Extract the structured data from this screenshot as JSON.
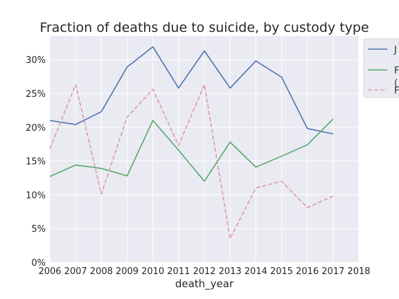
{
  "chart_data": {
    "type": "line",
    "title": "Fraction of deaths due to suicide, by custody type",
    "xlabel": "death_year",
    "ylabel": "",
    "xlim": [
      2006,
      2018
    ],
    "ylim": [
      0,
      0.335
    ],
    "x_ticks": [
      "2006",
      "2007",
      "2008",
      "2009",
      "2010",
      "2011",
      "2012",
      "2013",
      "2014",
      "2015",
      "2016",
      "2017",
      "2018"
    ],
    "y_ticks": [
      {
        "value": 0,
        "label": "0%"
      },
      {
        "value": 0.05,
        "label": "5%"
      },
      {
        "value": 0.1,
        "label": "10%"
      },
      {
        "value": 0.15,
        "label": "15%"
      },
      {
        "value": 0.2,
        "label": "20%"
      },
      {
        "value": 0.25,
        "label": "25%"
      },
      {
        "value": 0.3,
        "label": "30%"
      }
    ],
    "grid": true,
    "legend_position": "outside-right",
    "x": [
      2006,
      2007,
      2008,
      2009,
      2010,
      2011,
      2012,
      2013,
      2014,
      2015,
      2016,
      2017
    ],
    "series": [
      {
        "name": "J",
        "color": "#4c72b0",
        "dash": "solid",
        "values": [
          0.21,
          0.204,
          0.223,
          0.289,
          0.319,
          0.258,
          0.313,
          0.258,
          0.298,
          0.274,
          0.198,
          0.19
        ]
      },
      {
        "name": "F",
        "name_line2": "(",
        "color": "#55a868",
        "dash": "solid",
        "values": [
          0.127,
          0.144,
          0.139,
          0.128,
          0.21,
          0.166,
          0.12,
          0.178,
          0.141,
          0.157,
          0.174,
          0.212
        ]
      },
      {
        "name": "F",
        "color": "#dd9b9e",
        "dash": "dashed",
        "values": [
          0.168,
          0.263,
          0.101,
          0.215,
          0.256,
          0.173,
          0.263,
          0.035,
          0.11,
          0.12,
          0.081,
          0.098
        ]
      }
    ]
  }
}
